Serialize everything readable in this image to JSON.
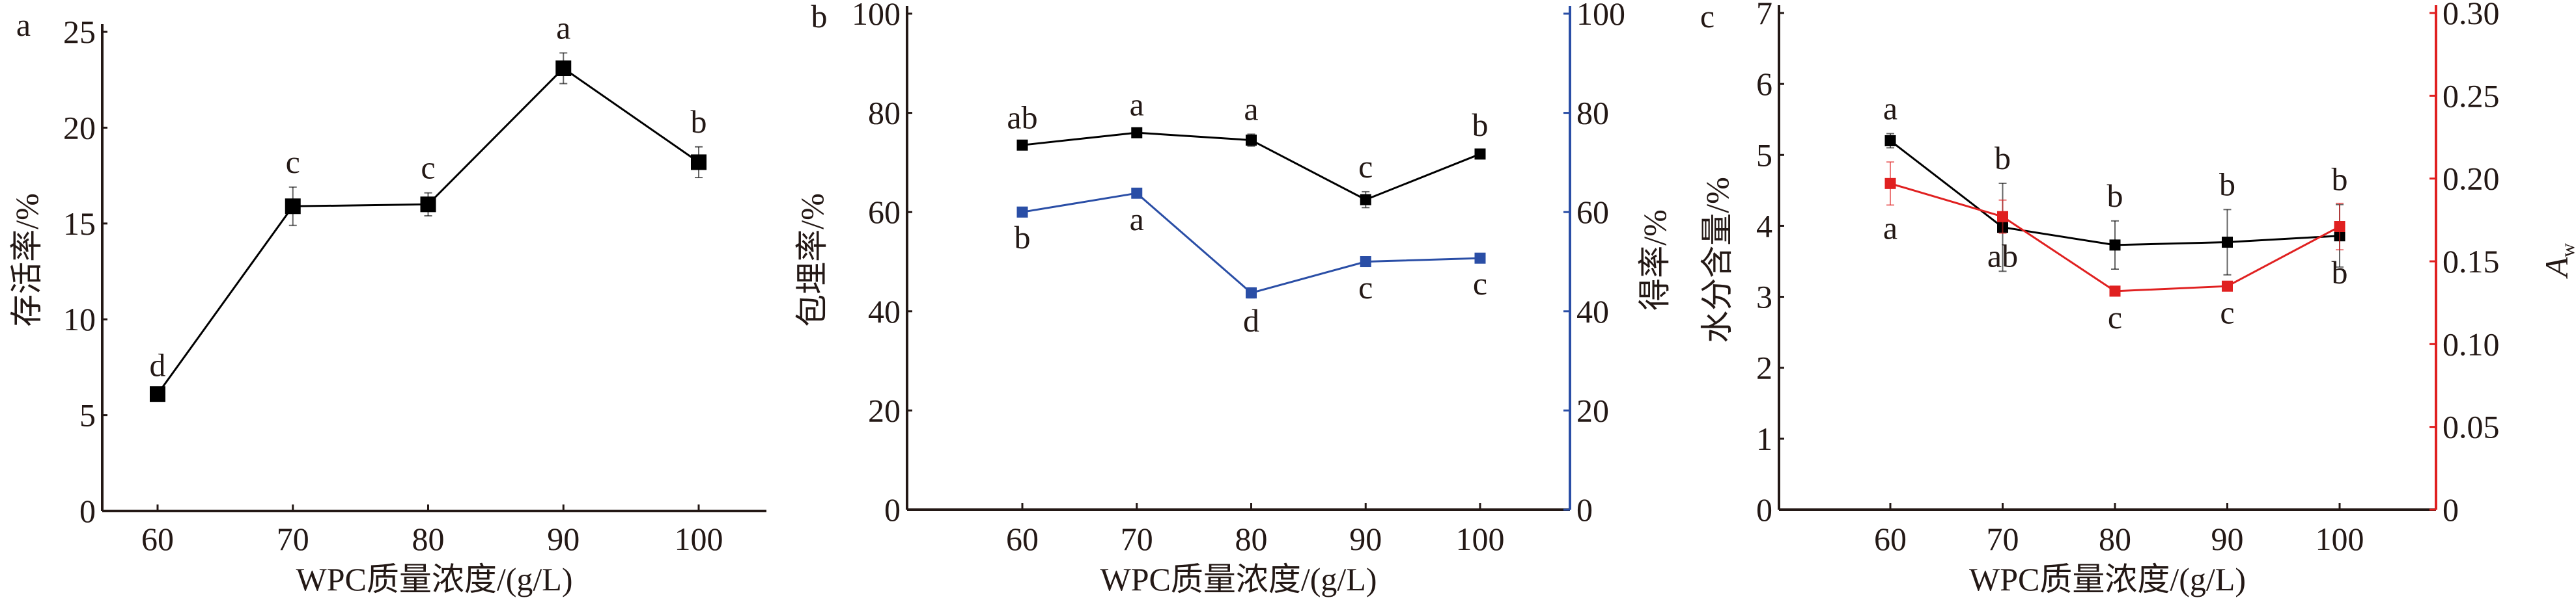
{
  "chart_data": [
    {
      "panel": "a",
      "type": "line",
      "xlabel": "WPC质量浓度/(g/L)",
      "ylabel": "存活率/%",
      "x": [
        60,
        70,
        80,
        90,
        100
      ],
      "xticks": [
        "60",
        "70",
        "80",
        "90",
        "100"
      ],
      "ylim": [
        0,
        25
      ],
      "yticks": [
        "0",
        "5",
        "10",
        "15",
        "20",
        "25"
      ],
      "series": [
        {
          "name": "存活率",
          "axis": "left",
          "color": "#000000",
          "values": [
            6.1,
            15.9,
            16.0,
            23.1,
            18.2
          ],
          "errors": [
            0.2,
            1.0,
            0.6,
            0.8,
            0.8
          ],
          "letters": [
            "d",
            "c",
            "c",
            "a",
            "b"
          ],
          "letter_pos": "above"
        }
      ]
    },
    {
      "panel": "b",
      "type": "line",
      "xlabel": "WPC质量浓度/(g/L)",
      "ylabel": "包埋率/%",
      "ylabel_right": "得率/%",
      "x": [
        60,
        70,
        80,
        90,
        100
      ],
      "xticks": [
        "60",
        "70",
        "80",
        "90",
        "100"
      ],
      "ylim": [
        0,
        100
      ],
      "yticks": [
        "0",
        "20",
        "40",
        "60",
        "80",
        "100"
      ],
      "ylim_right": [
        0,
        100
      ],
      "yticks_right": [
        "0",
        "20",
        "40",
        "60",
        "80",
        "100"
      ],
      "right_axis_color": "#2a4ea6",
      "series": [
        {
          "name": "包埋率",
          "axis": "left",
          "color": "#000000",
          "values": [
            73.5,
            76.0,
            74.5,
            62.5,
            71.7
          ],
          "errors": [
            0.5,
            0.6,
            1.2,
            1.6,
            0.8
          ],
          "letters": [
            "ab",
            "a",
            "a",
            "c",
            "b"
          ],
          "letter_pos": "above"
        },
        {
          "name": "得率",
          "axis": "right",
          "color": "#2a4ea6",
          "values": [
            60.0,
            63.8,
            43.7,
            50.0,
            50.7
          ],
          "errors": [
            0.5,
            0.6,
            1.0,
            0.6,
            0.5
          ],
          "letters": [
            "b",
            "a",
            "d",
            "c",
            "c"
          ],
          "letter_pos": "below"
        }
      ]
    },
    {
      "panel": "c",
      "type": "line",
      "xlabel": "WPC质量浓度/(g/L)",
      "ylabel": "水分含量/%",
      "ylabel_right": "A",
      "ylabel_right_sub": "w",
      "x": [
        60,
        70,
        80,
        90,
        100
      ],
      "xticks": [
        "60",
        "70",
        "80",
        "90",
        "100"
      ],
      "ylim": [
        0,
        7
      ],
      "yticks": [
        "0",
        "1",
        "2",
        "3",
        "4",
        "5",
        "6",
        "7"
      ],
      "ylim_right": [
        0,
        0.3
      ],
      "yticks_right": [
        "0",
        "0.05",
        "0.10",
        "0.15",
        "0.20",
        "0.25",
        "0.30"
      ],
      "right_axis_color": "#e02020",
      "series": [
        {
          "name": "水分含量",
          "axis": "left",
          "color": "#000000",
          "values": [
            5.2,
            3.98,
            3.73,
            3.77,
            3.86
          ],
          "errors": [
            0.1,
            0.62,
            0.34,
            0.46,
            0.44
          ],
          "letters": [
            "a",
            "b",
            "b",
            "b",
            "b"
          ],
          "letter_pos": "above"
        },
        {
          "name": "Aw",
          "axis": "right",
          "color": "#e02020",
          "values": [
            0.197,
            0.177,
            0.132,
            0.135,
            0.171
          ],
          "errors": [
            0.013,
            0.01,
            0.002,
            0.002,
            0.014
          ],
          "letters": [
            "a",
            "ab",
            "c",
            "c",
            "b"
          ],
          "letter_pos": "below"
        }
      ]
    }
  ]
}
